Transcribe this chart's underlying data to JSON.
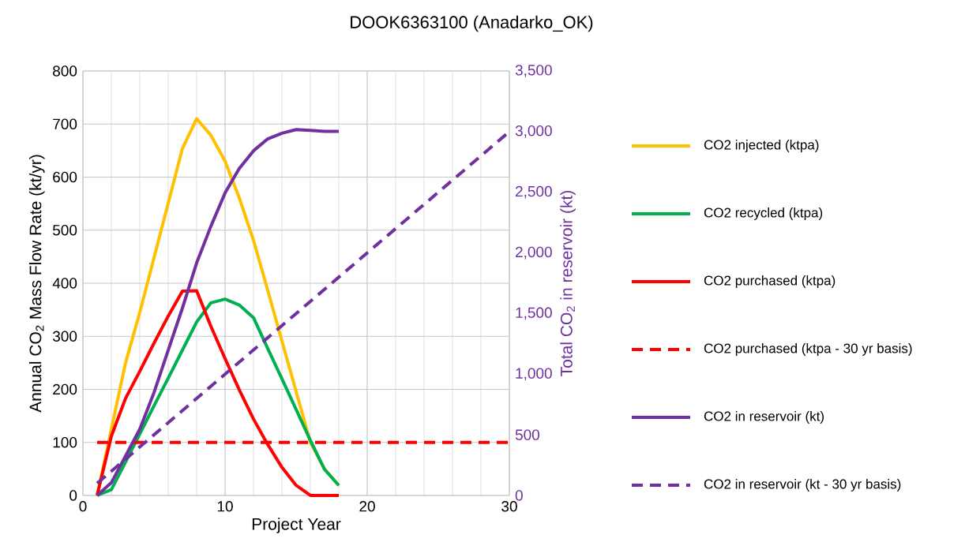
{
  "chart_data": {
    "type": "line",
    "title": "DOOK6363100 (Anadarko_OK)",
    "xlabel": "Project Year",
    "ylabel": "Annual CO$_{2}$ Mass Flow Rate (kt/yr)",
    "y2label": "Total CO$_{2}$ in reservoir (kt)",
    "xlim": [
      0,
      30
    ],
    "xticks": [
      0,
      10,
      20,
      30
    ],
    "ylim": [
      0,
      800
    ],
    "yticks": [
      0,
      100,
      200,
      300,
      400,
      500,
      600,
      700,
      800
    ],
    "y2lim": [
      0,
      3500
    ],
    "y2ticks": [
      0,
      500,
      {
        "value": 1000,
        "label": "1,000"
      },
      {
        "value": 1500,
        "label": "1,500"
      },
      {
        "value": 2000,
        "label": "2,000"
      },
      {
        "value": 2500,
        "label": "2,500"
      },
      {
        "value": 3000,
        "label": "3,000"
      },
      {
        "value": 3500,
        "label": "3,500"
      }
    ],
    "grid": true,
    "legend": "right",
    "marker": "none",
    "series": [
      {
        "name": "CO2 injected (ktpa)",
        "color": "#ffc000",
        "line_style": "solid",
        "x": [
          1,
          2,
          3,
          4,
          5,
          6,
          7,
          8,
          9,
          10,
          11,
          12,
          13,
          14,
          15,
          16,
          17,
          18
        ],
        "values": [
          0,
          125,
          250,
          345,
          448,
          551,
          654,
          710,
          679,
          630,
          561,
          481,
          387,
          291,
          196,
          100,
          50,
          19
        ]
      },
      {
        "name": "CO2 recycled (ktpa)",
        "color": "#00b050",
        "line_style": "solid",
        "x": [
          1,
          2,
          3,
          4,
          5,
          6,
          7,
          8,
          9,
          10,
          11,
          12,
          13,
          14,
          15,
          16,
          17,
          18
        ],
        "values": [
          0,
          11,
          63,
          116,
          169,
          221,
          274,
          327,
          363,
          370,
          359,
          335,
          277,
          220,
          162,
          104,
          49,
          19
        ]
      },
      {
        "name": "CO2 purchased (ktpa)",
        "color": "#ff0000",
        "line_style": "solid",
        "x": [
          1,
          2,
          3,
          4,
          5,
          6,
          7,
          8,
          9,
          10,
          11,
          12,
          13,
          14,
          15,
          16,
          17,
          18
        ],
        "values": [
          0,
          112,
          183,
          234,
          287,
          338,
          385,
          386,
          319,
          258,
          199,
          144,
          96,
          53,
          19,
          0,
          0,
          0
        ]
      },
      {
        "name": "CO2 purchased (ktpa - 30 yr basis)",
        "color": "#ff0000",
        "line_style": "dashed",
        "x": [
          1,
          30
        ],
        "values": [
          100,
          100
        ]
      },
      {
        "name": "CO2 in reservoir (kt)",
        "color": "#7030a0",
        "line_style": "solid",
        "axis": "y2",
        "x": [
          1,
          2,
          3,
          4,
          5,
          6,
          7,
          8,
          9,
          10,
          11,
          12,
          13,
          14,
          15,
          16,
          17,
          18
        ],
        "values": [
          0,
          105,
          326,
          546,
          848,
          1197,
          1545,
          1917,
          2219,
          2494,
          2696,
          2842,
          2940,
          2987,
          3017,
          3010,
          3003,
          3003
        ]
      },
      {
        "name": "CO2 in reservoir (kt - 30 yr basis)",
        "color": "#7030a0",
        "line_style": "dashed",
        "axis": "y2",
        "x": [
          1,
          30
        ],
        "values": [
          100,
          3000
        ]
      }
    ]
  }
}
